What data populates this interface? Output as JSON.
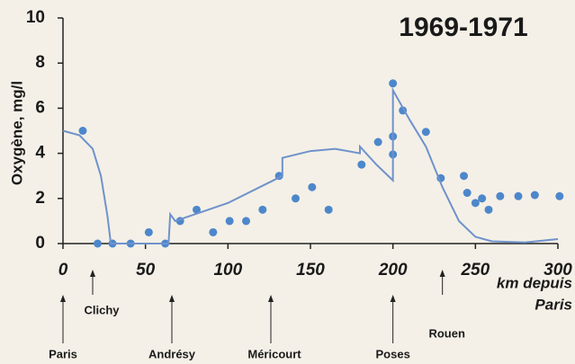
{
  "chart_data": {
    "type": "scatter",
    "title": "1969-1971",
    "ylabel": "Oxygène, mg/l",
    "xlabel": [
      "km depuis",
      "Paris"
    ],
    "xlim": [
      0,
      300
    ],
    "xticks": [
      0,
      50,
      100,
      150,
      200,
      250,
      300
    ],
    "ylim": [
      0,
      10
    ],
    "yticks": [
      0,
      2,
      4,
      6,
      8,
      10
    ],
    "grid": false,
    "series": [
      {
        "kind": "points",
        "color": "#4d87cb",
        "x": [
          12,
          21,
          30,
          41,
          52,
          62,
          71,
          81,
          91,
          101,
          111,
          121,
          131,
          141,
          151,
          161,
          181,
          191,
          200,
          200,
          200,
          206,
          220,
          229,
          243,
          245,
          250,
          254,
          258,
          265,
          276,
          286,
          301
        ],
        "values": [
          5.0,
          0,
          0,
          0,
          0.5,
          0,
          1.0,
          1.5,
          0.5,
          1.0,
          1.0,
          1.5,
          3.0,
          2.0,
          2.5,
          1.5,
          3.5,
          4.5,
          7.1,
          4.75,
          3.95,
          5.9,
          4.95,
          2.9,
          3.0,
          2.25,
          1.8,
          2.0,
          1.5,
          2.1,
          2.1,
          2.15,
          2.1
        ]
      },
      {
        "kind": "line",
        "color": "#6f92cc",
        "x": [
          0,
          10,
          18,
          23,
          27,
          29,
          64,
          65,
          68,
          100,
          133,
          133,
          150,
          165,
          180,
          180,
          190,
          200,
          200,
          210,
          220,
          230,
          240,
          250,
          260,
          280,
          300
        ],
        "values": [
          5.0,
          4.8,
          4.2,
          3.0,
          1.2,
          0,
          0,
          1.3,
          1.0,
          1.8,
          3.0,
          3.8,
          4.1,
          4.2,
          4.0,
          4.3,
          3.5,
          2.8,
          6.8,
          5.5,
          4.3,
          2.5,
          1.0,
          0.3,
          0.1,
          0.05,
          0.2
        ]
      }
    ],
    "annotations": [
      {
        "text": "Paris",
        "x": 0
      },
      {
        "text": "Clichy",
        "x": 18
      },
      {
        "text": "Andrésy",
        "x": 66
      },
      {
        "text": "Méricourt",
        "x": 126
      },
      {
        "text": "Poses",
        "x": 200
      },
      {
        "text": "Rouen",
        "x": 230
      }
    ]
  }
}
